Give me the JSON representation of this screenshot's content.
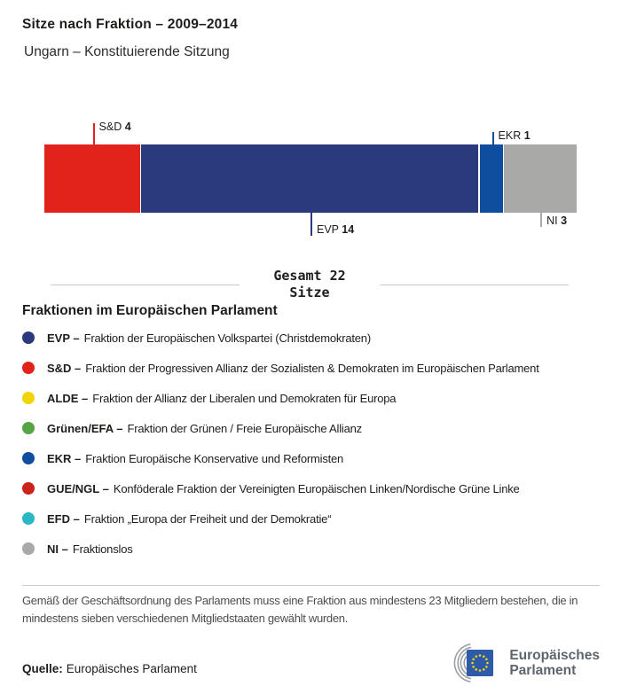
{
  "header": {
    "title": "Sitze nach Fraktion – 2009–2014",
    "subtitle": "Ungarn – Konstituierende Sitzung"
  },
  "chart_data": {
    "type": "bar",
    "title": "Sitze nach Fraktion – 2009–2014",
    "subtitle": "Ungarn – Konstituierende Sitzung",
    "orientation": "horizontal-stacked",
    "total_seats": 22,
    "total_label": "Gesamt 22",
    "total_sublabel": "Sitze",
    "segments": [
      {
        "label": "S&D",
        "value": 4,
        "color": "#e2231c",
        "callout": "top"
      },
      {
        "label": "EVP",
        "value": 14,
        "color": "#2b3a7d",
        "callout": "bottom"
      },
      {
        "label": "EKR",
        "value": 1,
        "color": "#0f4e9f",
        "callout": "top"
      },
      {
        "label": "NI",
        "value": 3,
        "color": "#a9a9a7",
        "callout": "bottom"
      }
    ]
  },
  "legend": {
    "heading": "Fraktionen im Europäischen Parlament",
    "items": [
      {
        "abbr": "EVP –",
        "desc": "Fraktion der Europäischen Volkspartei (Christdemokraten)",
        "color": "#2b3a7d"
      },
      {
        "abbr": "S&D –",
        "desc": "Fraktion der Progressiven Allianz der Sozialisten & Demokraten im Europäischen Parlament",
        "color": "#e2231c"
      },
      {
        "abbr": "ALDE –",
        "desc": "Fraktion der Allianz der Liberalen und Demokraten für Europa",
        "color": "#f0d500"
      },
      {
        "abbr": "Grünen/EFA –",
        "desc": "Fraktion der Grünen / Freie Europäische Allianz",
        "color": "#55a546"
      },
      {
        "abbr": "EKR –",
        "desc": "Fraktion Europäische Konservative und Reformisten",
        "color": "#0f4e9f"
      },
      {
        "abbr": "GUE/NGL –",
        "desc": "Konföderale Fraktion der Vereinigten Europäischen Linken/Nordische Grüne Linke",
        "color": "#c9231c"
      },
      {
        "abbr": "EFD –",
        "desc": "Fraktion „Europa der Freiheit und der Demokratie“",
        "color": "#2bb8c5"
      },
      {
        "abbr": "NI –",
        "desc": "Fraktionslos",
        "color": "#a9a9a7"
      }
    ]
  },
  "footnote": {
    "text": "Gemäß der Geschäftsordnung des Parlaments muss eine Fraktion aus mindestens 23 Mitgliedern bestehen, die in mindestens sieben verschiedenen Mitgliedstaaten gewählt wurden."
  },
  "source": {
    "label": "Quelle:",
    "text": "Europäisches Parlament"
  },
  "logo": {
    "line1": "Europäisches",
    "line2": "Parlament",
    "flag_color": "#2d5ba7",
    "star_color": "#f7d117",
    "arc_color": "#9aa0a5"
  }
}
